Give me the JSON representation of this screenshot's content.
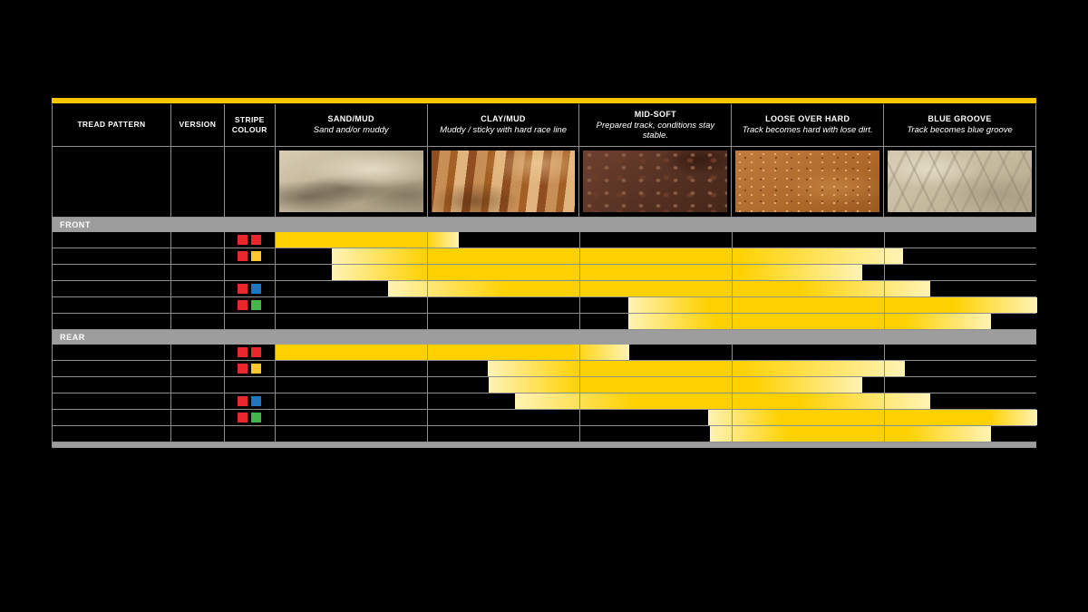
{
  "colors": {
    "accent_yellow": "#FDC700",
    "bar_yellow": "#FFD100",
    "bar_pale": "#FFF3B5",
    "section_gray": "#9D9D9D",
    "grid_gray": "#8F8F8F",
    "stripe_palette": {
      "red": "#E8282B",
      "yellow": "#FFC72E",
      "blue": "#1E76BD",
      "green": "#43B649"
    }
  },
  "header": {
    "tread_pattern": "TREAD PATTERN",
    "version": "VERSION",
    "stripe_colour": "STRIPE COLOUR",
    "terrains": [
      {
        "name": "SAND/MUD",
        "desc": "Sand and/or muddy",
        "photo": "sand-photo"
      },
      {
        "name": "CLAY/MUD",
        "desc": "Muddy / sticky with hard race line",
        "photo": "clay-photo"
      },
      {
        "name": "MID-SOFT",
        "desc": "Prepared track, conditions stay stable.",
        "photo": "midsoft-photo"
      },
      {
        "name": "LOOSE OVER HARD",
        "desc": "Track becomes hard with lose dirt.",
        "photo": "loose-photo"
      },
      {
        "name": "BLUE GROOVE",
        "desc": "Track becomes blue groove",
        "photo": "bluegroove-photo"
      }
    ]
  },
  "sections": [
    {
      "label": "FRONT",
      "rows": [
        {
          "stripes": [
            "red",
            "red"
          ],
          "bar": {
            "start": 0,
            "solid_start": 0,
            "solid_end": 165,
            "end": 202
          }
        },
        {
          "stripes": [
            "red",
            "yellow"
          ],
          "bar": {
            "start": 62,
            "solid_start": 167,
            "solid_end": 507,
            "end": 692
          }
        },
        {
          "stripes": [],
          "bar": {
            "start": 62,
            "solid_start": 167,
            "solid_end": 512,
            "end": 647
          }
        },
        {
          "stripes": [
            "red",
            "blue"
          ],
          "bar": {
            "start": 124,
            "solid_start": 257,
            "solid_end": 575,
            "end": 722
          }
        },
        {
          "stripes": [
            "red",
            "green"
          ],
          "bar": {
            "start": 389,
            "solid_start": 477,
            "solid_end": 747,
            "end": 840
          }
        },
        {
          "stripes": [],
          "bar": {
            "start": 389,
            "solid_start": 487,
            "solid_end": 692,
            "end": 789
          }
        }
      ]
    },
    {
      "label": "REAR",
      "rows": [
        {
          "stripes": [
            "red",
            "red"
          ],
          "bar": {
            "start": 0,
            "solid_start": 0,
            "solid_end": 327,
            "end": 390
          }
        },
        {
          "stripes": [
            "red",
            "yellow"
          ],
          "bar": {
            "start": 234,
            "solid_start": 337,
            "solid_end": 507,
            "end": 694
          }
        },
        {
          "stripes": [],
          "bar": {
            "start": 235,
            "solid_start": 337,
            "solid_end": 527,
            "end": 647
          }
        },
        {
          "stripes": [
            "red",
            "blue"
          ],
          "bar": {
            "start": 264,
            "solid_start": 397,
            "solid_end": 575,
            "end": 722
          }
        },
        {
          "stripes": [
            "red",
            "green"
          ],
          "bar": {
            "start": 477,
            "solid_start": 557,
            "solid_end": 787,
            "end": 840
          }
        },
        {
          "stripes": [],
          "bar": {
            "start": 479,
            "solid_start": 567,
            "solid_end": 694,
            "end": 789
          }
        }
      ]
    }
  ],
  "chart_data": {
    "type": "table",
    "terrain_scale": [
      "SAND/MUD",
      "CLAY/MUD",
      "MID-SOFT",
      "LOOSE OVER HARD",
      "BLUE GROOVE"
    ],
    "terrain_descriptions": [
      "Sand and/or muddy",
      "Muddy / sticky with hard race line",
      "Prepared track, conditions stay stable.",
      "Track becomes hard with lose dirt.",
      "Track becomes blue groove"
    ],
    "row_group_labels": [
      "FRONT",
      "REAR"
    ],
    "sections": [
      {
        "name": "FRONT",
        "rows": [
          {
            "stripe_colour": [
              "red",
              "red"
            ],
            "range_terrain_units": [
              0.0,
              1.2
            ]
          },
          {
            "stripe_colour": [
              "red",
              "yellow"
            ],
            "range_terrain_units": [
              0.37,
              4.12
            ]
          },
          {
            "stripe_colour": [],
            "range_terrain_units": [
              0.37,
              3.85
            ]
          },
          {
            "stripe_colour": [
              "red",
              "blue"
            ],
            "range_terrain_units": [
              0.74,
              4.3
            ]
          },
          {
            "stripe_colour": [
              "red",
              "green"
            ],
            "range_terrain_units": [
              2.32,
              5.0
            ]
          },
          {
            "stripe_colour": [],
            "range_terrain_units": [
              2.32,
              4.7
            ]
          }
        ]
      },
      {
        "name": "REAR",
        "rows": [
          {
            "stripe_colour": [
              "red",
              "red"
            ],
            "range_terrain_units": [
              0.0,
              2.32
            ]
          },
          {
            "stripe_colour": [
              "red",
              "yellow"
            ],
            "range_terrain_units": [
              1.39,
              4.13
            ]
          },
          {
            "stripe_colour": [],
            "range_terrain_units": [
              1.4,
              3.85
            ]
          },
          {
            "stripe_colour": [
              "red",
              "blue"
            ],
            "range_terrain_units": [
              1.57,
              4.3
            ]
          },
          {
            "stripe_colour": [
              "red",
              "green"
            ],
            "range_terrain_units": [
              2.84,
              5.0
            ]
          },
          {
            "stripe_colour": [],
            "range_terrain_units": [
              2.85,
              4.7
            ]
          }
        ]
      }
    ]
  }
}
